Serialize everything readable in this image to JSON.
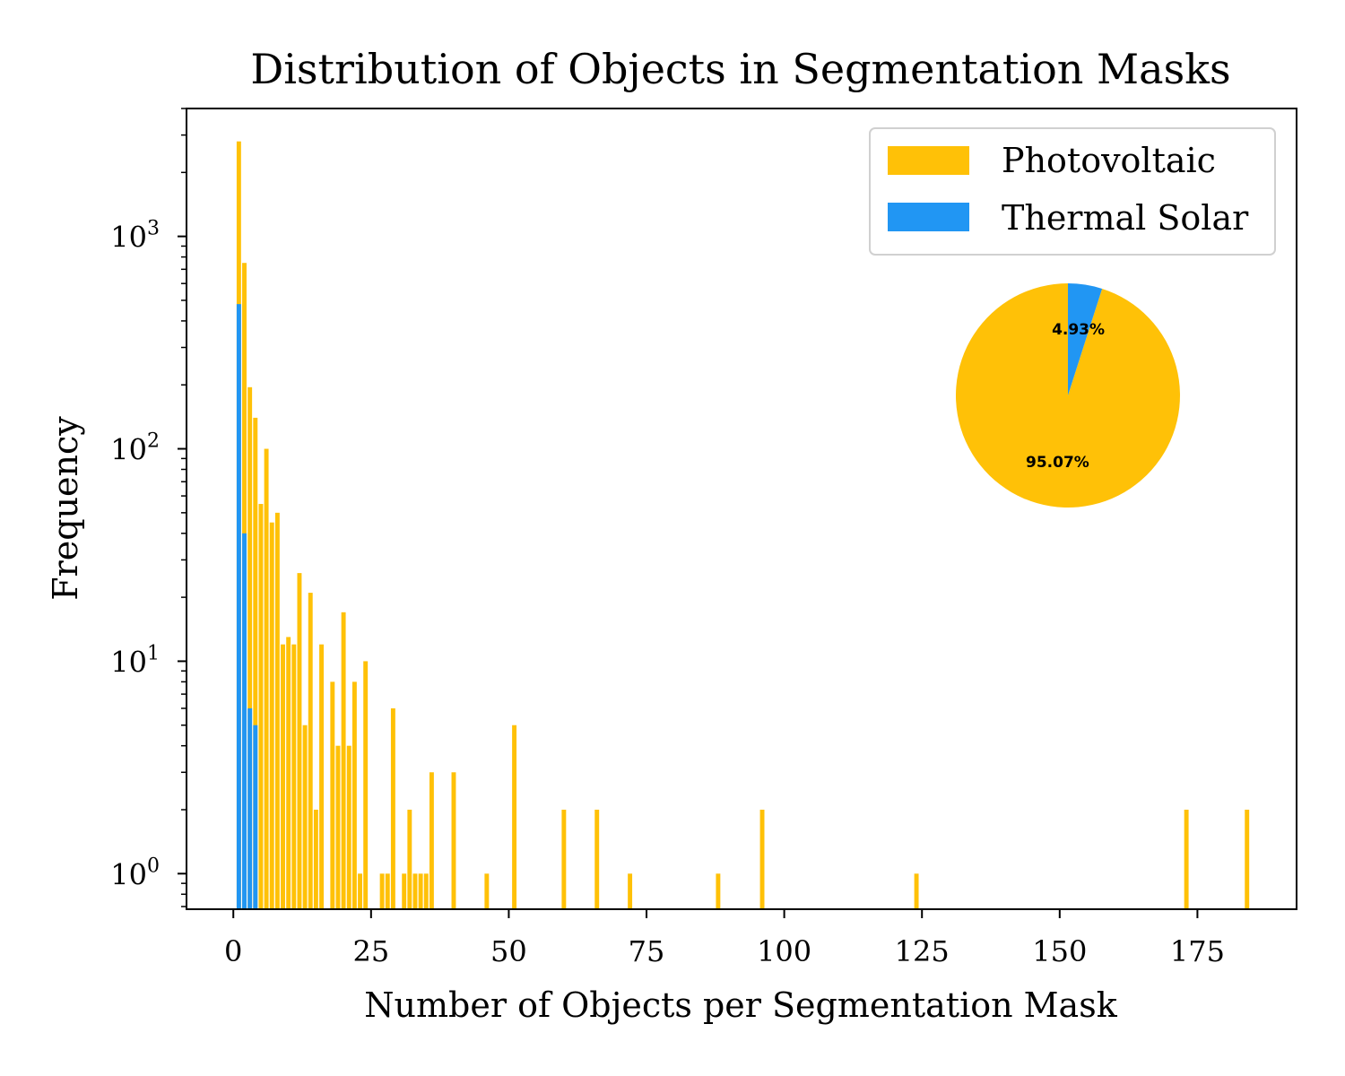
{
  "chart_data": {
    "type": "bar",
    "title": "Distribution of Objects in Segmentation Masks",
    "xlabel": "Number of Objects per Segmentation Mask",
    "ylabel": "Frequency",
    "yscale": "log",
    "xlim": [
      -8.5,
      193
    ],
    "ylim": [
      0.68,
      4000
    ],
    "x_ticks": [
      0,
      25,
      50,
      75,
      100,
      125,
      150,
      175
    ],
    "y_ticks": [
      {
        "value": 1,
        "base": "10",
        "exp": "0"
      },
      {
        "value": 10,
        "base": "10",
        "exp": "1"
      },
      {
        "value": 100,
        "base": "10",
        "exp": "2"
      },
      {
        "value": 1000,
        "base": "10",
        "exp": "3"
      }
    ],
    "legend_position": "top-right",
    "colors": {
      "photovoltaic": "#FFC107",
      "thermal": "#2196F3"
    },
    "series": [
      {
        "name": "Photovoltaic",
        "points": [
          [
            1,
            2800
          ],
          [
            2,
            750
          ],
          [
            3,
            195
          ],
          [
            4,
            140
          ],
          [
            5,
            55
          ],
          [
            6,
            100
          ],
          [
            7,
            45
          ],
          [
            8,
            50
          ],
          [
            9,
            12
          ],
          [
            10,
            13
          ],
          [
            11,
            12
          ],
          [
            12,
            26
          ],
          [
            13,
            5
          ],
          [
            14,
            21
          ],
          [
            15,
            2
          ],
          [
            16,
            12
          ],
          [
            18,
            8
          ],
          [
            19,
            4
          ],
          [
            20,
            17
          ],
          [
            21,
            4
          ],
          [
            22,
            8
          ],
          [
            23,
            1
          ],
          [
            24,
            10
          ],
          [
            27,
            1
          ],
          [
            28,
            1
          ],
          [
            29,
            6
          ],
          [
            31,
            1
          ],
          [
            32,
            2
          ],
          [
            33,
            1
          ],
          [
            34,
            1
          ],
          [
            35,
            1
          ],
          [
            36,
            3
          ],
          [
            40,
            3
          ],
          [
            46,
            1
          ],
          [
            51,
            5
          ],
          [
            60,
            2
          ],
          [
            66,
            2
          ],
          [
            72,
            1
          ],
          [
            88,
            1
          ],
          [
            96,
            2
          ],
          [
            124,
            1
          ],
          [
            173,
            2
          ],
          [
            184,
            2
          ]
        ]
      },
      {
        "name": "Thermal Solar",
        "points": [
          [
            1,
            480
          ],
          [
            2,
            40
          ],
          [
            3,
            6
          ],
          [
            4,
            5
          ]
        ]
      }
    ],
    "inset_pie": {
      "slices": [
        {
          "name": "Photovoltaic",
          "value": 95.07,
          "label": "95.07%"
        },
        {
          "name": "Thermal Solar",
          "value": 4.93,
          "label": "4.93%"
        }
      ]
    }
  }
}
